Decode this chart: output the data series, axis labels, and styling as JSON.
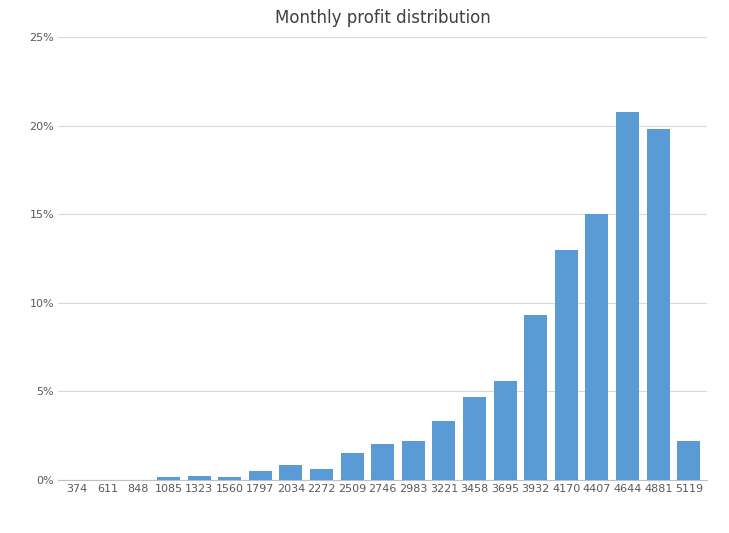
{
  "title": "Monthly profit distribution",
  "categories": [
    "374",
    "611",
    "848",
    "1085",
    "1323",
    "1560",
    "1797",
    "2034",
    "2272",
    "2509",
    "2746",
    "2983",
    "3221",
    "3458",
    "3695",
    "3932",
    "4170",
    "4407",
    "4644",
    "4881",
    "5119"
  ],
  "values": [
    0.0,
    0.0,
    0.0,
    0.0015,
    0.002,
    0.0015,
    0.005,
    0.0085,
    0.006,
    0.015,
    0.02,
    0.022,
    0.033,
    0.047,
    0.056,
    0.093,
    0.13,
    0.15,
    0.208,
    0.198,
    0.022
  ],
  "bar_color": "#5b9bd5",
  "ylim": [
    0,
    0.25
  ],
  "yticks": [
    0.0,
    0.05,
    0.1,
    0.15,
    0.2,
    0.25
  ],
  "ytick_labels": [
    "0%",
    "5%",
    "10%",
    "15%",
    "20%",
    "25%"
  ],
  "background_color": "#ffffff",
  "grid_color": "#d9d9d9",
  "title_fontsize": 12,
  "tick_fontsize": 8,
  "figsize": [
    7.29,
    5.33
  ],
  "dpi": 100
}
